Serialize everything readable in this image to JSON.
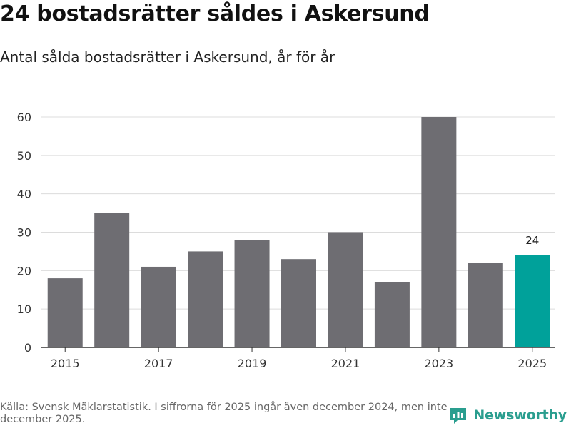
{
  "header": {
    "title": "24 bostadsrätter såldes i Askersund",
    "subtitle": "Antal sålda bostadsrätter i Askersund, år för år"
  },
  "footer": {
    "source_note": "Källa: Svensk Mäklarstatistik. I siffrorna för 2025 ingår även december 2024, men inte december 2025.",
    "brand_name": "Newsworthy",
    "brand_icon": "chart-logo-icon"
  },
  "colors": {
    "bar": "#6e6d72",
    "highlight": "#00a19a",
    "grid": "#dcdcdc",
    "axis": "#333333",
    "brand": "#2a9e8f"
  },
  "chart_data": {
    "type": "bar",
    "title": "24 bostadsrätter såldes i Askersund",
    "subtitle": "Antal sålda bostadsrätter i Askersund, år för år",
    "xlabel": "",
    "ylabel": "",
    "categories": [
      "2015",
      "2016",
      "2017",
      "2018",
      "2019",
      "2020",
      "2021",
      "2022",
      "2023",
      "2024",
      "2025"
    ],
    "values": [
      18,
      35,
      21,
      25,
      28,
      23,
      30,
      17,
      60,
      22,
      24
    ],
    "x_tick_labels": [
      "2015",
      "2017",
      "2019",
      "2021",
      "2023",
      "2025"
    ],
    "y_ticks": [
      0,
      10,
      20,
      30,
      40,
      50,
      60
    ],
    "ylim": [
      0,
      60
    ],
    "grid": true,
    "highlight_category": "2025",
    "data_labels": [
      {
        "category": "2025",
        "label": "24"
      }
    ]
  }
}
